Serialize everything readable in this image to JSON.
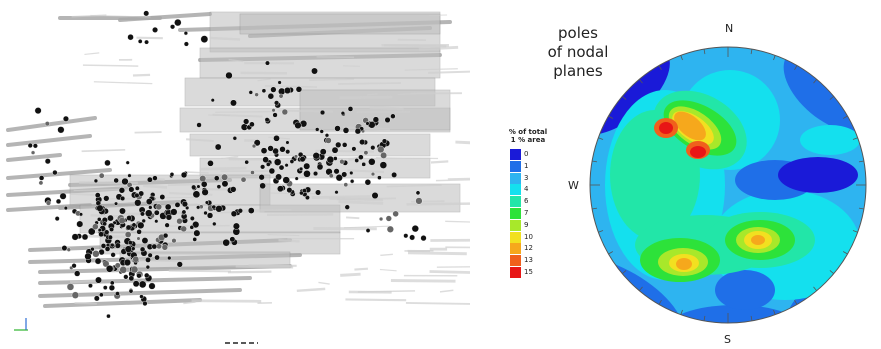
{
  "plot": {
    "title_lines": [
      "poles",
      "of nodal",
      "planes"
    ]
  },
  "legend": {
    "title_line1": "% of total",
    "title_line2": "1 % area",
    "levels": [
      {
        "label": "0",
        "color": "#1a1ad8"
      },
      {
        "label": "1",
        "color": "#1f6fe8"
      },
      {
        "label": "3",
        "color": "#2eb4f0"
      },
      {
        "label": "4",
        "color": "#14e0ee"
      },
      {
        "label": "6",
        "color": "#22e6a8"
      },
      {
        "label": "7",
        "color": "#2de23a"
      },
      {
        "label": "9",
        "color": "#a8e82a"
      },
      {
        "label": "10",
        "color": "#f2e020"
      },
      {
        "label": "12",
        "color": "#f6a81c"
      },
      {
        "label": "13",
        "color": "#f0601c"
      },
      {
        "label": "15",
        "color": "#e81616"
      }
    ]
  },
  "compass": {
    "north": "N",
    "south": "S",
    "west": "W"
  }
}
